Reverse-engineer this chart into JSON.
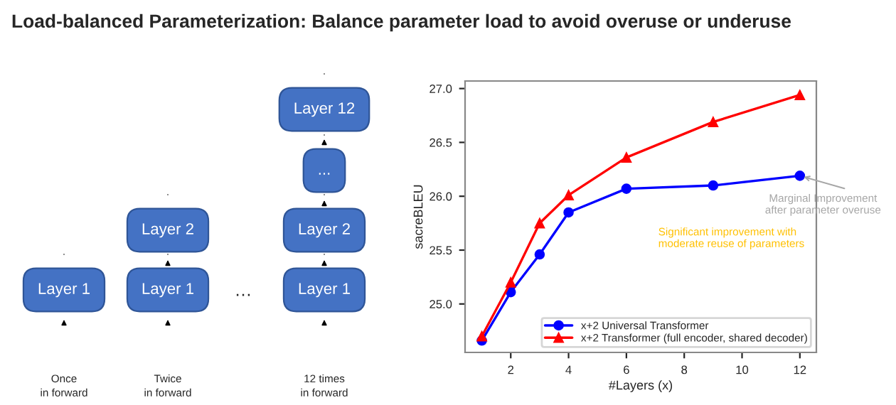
{
  "chart_data": [
    {
      "type": "other",
      "title": "Load-balanced Parameterization: Balance parameter load to avoid overuse or underuse",
      "annotations": [
        "Layer 1",
        "Layer 1",
        "Layer 2",
        "…",
        "Layer 1",
        "Layer 2",
        "...",
        "Layer 12",
        "Once\nin forward",
        "Twice\nin forward",
        "12 times\nin forward"
      ]
    },
    {
      "type": "line",
      "x": [
        1,
        2,
        3,
        4,
        6,
        9,
        12
      ],
      "xlabel": "#Layers (x)",
      "ylabel": "sacreBLEU",
      "xlim": [
        0.42,
        12.57
      ],
      "ylim": [
        24.55,
        27.07
      ],
      "xticks": [
        2,
        4,
        6,
        8,
        10,
        12
      ],
      "yticks": [
        {
          "value": 25,
          "label": "25.0"
        },
        {
          "value": 25.5,
          "label": "25.5"
        },
        {
          "value": 26,
          "label": "26.0"
        },
        {
          "value": 26.5,
          "label": "26.5"
        },
        {
          "value": 27,
          "label": "27.0"
        }
      ],
      "grid": false,
      "legend": "bottom right",
      "series": [
        {
          "name": "x+2 Universal Transformer",
          "color": "#0000ff",
          "marker": "circle",
          "values": [
            24.66,
            25.11,
            25.46,
            25.85,
            26.07,
            26.1,
            26.19
          ]
        },
        {
          "name": "x+2 Transformer (full encoder, shared decoder)",
          "color": "#ff0000",
          "marker": "triangle",
          "values": [
            24.7,
            25.2,
            25.75,
            26.01,
            26.36,
            26.69,
            26.94
          ]
        }
      ],
      "annotations": [
        {
          "text": "Marginal Improvement\nafter parameter overuse",
          "x": 12,
          "y": 26.19
        },
        "Significant improvement with\nmoderate reuse of parameters"
      ]
    }
  ]
}
